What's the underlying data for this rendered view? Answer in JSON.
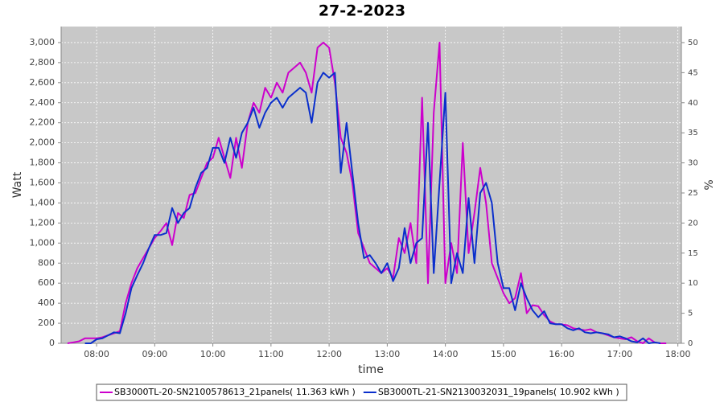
{
  "chart_data": {
    "type": "line",
    "title": "27-2-2023",
    "xlabel": "time",
    "ylabel": "Watt",
    "y2label": "%",
    "x": [
      7.5,
      7.6,
      7.7,
      7.8,
      7.9,
      8.0,
      8.1,
      8.2,
      8.3,
      8.4,
      8.5,
      8.6,
      8.7,
      8.8,
      8.9,
      9.0,
      9.1,
      9.2,
      9.3,
      9.4,
      9.5,
      9.6,
      9.7,
      9.8,
      9.9,
      10.0,
      10.1,
      10.2,
      10.3,
      10.4,
      10.5,
      10.6,
      10.7,
      10.8,
      10.9,
      11.0,
      11.1,
      11.2,
      11.3,
      11.4,
      11.5,
      11.6,
      11.7,
      11.8,
      11.9,
      12.0,
      12.1,
      12.2,
      12.3,
      12.4,
      12.5,
      12.6,
      12.7,
      12.8,
      12.9,
      13.0,
      13.1,
      13.2,
      13.3,
      13.4,
      13.5,
      13.6,
      13.7,
      13.8,
      13.9,
      14.0,
      14.1,
      14.2,
      14.3,
      14.4,
      14.5,
      14.6,
      14.7,
      14.8,
      14.9,
      15.0,
      15.1,
      15.2,
      15.3,
      15.4,
      15.5,
      15.6,
      15.7,
      15.8,
      15.9,
      16.0,
      16.1,
      16.2,
      16.3,
      16.4,
      16.5,
      16.6,
      16.7,
      16.8,
      16.9,
      17.0,
      17.1,
      17.2,
      17.3,
      17.4,
      17.5,
      17.6,
      17.7,
      17.8
    ],
    "series": [
      {
        "name": "SB3000TL-20-SN2100578613_21panels( 11.363 kWh )",
        "color": "#cc00cc",
        "values": [
          0,
          10,
          20,
          50,
          50,
          50,
          60,
          80,
          100,
          120,
          400,
          600,
          750,
          850,
          950,
          1050,
          1120,
          1200,
          980,
          1300,
          1250,
          1480,
          1500,
          1650,
          1800,
          1850,
          2050,
          1850,
          1650,
          2050,
          1750,
          2200,
          2400,
          2300,
          2550,
          2450,
          2600,
          2500,
          2700,
          2750,
          2800,
          2700,
          2500,
          2950,
          3000,
          2950,
          2600,
          2050,
          1900,
          1600,
          1100,
          950,
          800,
          750,
          700,
          750,
          650,
          1050,
          900,
          1200,
          800,
          2450,
          600,
          2300,
          3000,
          600,
          1000,
          700,
          2000,
          900,
          1300,
          1750,
          1400,
          800,
          650,
          500,
          400,
          450,
          700,
          300,
          380,
          370,
          280,
          220,
          190,
          190,
          180,
          150,
          140,
          130,
          140,
          110,
          100,
          80,
          60,
          50,
          40,
          60,
          20,
          0,
          50,
          10,
          0,
          0
        ]
      },
      {
        "name": "SB3000TL-21-SN2130032031_19panels( 10.902 kWh )",
        "color": "#0a2fcc",
        "values": [
          null,
          null,
          null,
          0,
          0,
          40,
          50,
          80,
          110,
          100,
          300,
          550,
          680,
          800,
          950,
          1080,
          1080,
          1100,
          1350,
          1200,
          1300,
          1350,
          1550,
          1700,
          1750,
          1950,
          1950,
          1800,
          2050,
          1850,
          2100,
          2200,
          2350,
          2150,
          2300,
          2400,
          2450,
          2350,
          2450,
          2500,
          2550,
          2500,
          2200,
          2600,
          2700,
          2650,
          2700,
          1700,
          2200,
          1700,
          1200,
          850,
          880,
          800,
          700,
          800,
          620,
          750,
          1150,
          800,
          1000,
          1050,
          2200,
          700,
          1600,
          2500,
          600,
          900,
          700,
          1450,
          800,
          1500,
          1600,
          1400,
          800,
          550,
          550,
          330,
          600,
          450,
          330,
          260,
          320,
          200,
          190,
          190,
          150,
          130,
          150,
          110,
          100,
          110,
          100,
          90,
          60,
          70,
          50,
          20,
          10,
          50,
          0,
          10,
          0,
          null
        ]
      }
    ],
    "xlim": [
      7.39,
      18.06
    ],
    "xticks": [
      {
        "value": 8,
        "label": "08:00"
      },
      {
        "value": 9,
        "label": "09:00"
      },
      {
        "value": 10,
        "label": "10:00"
      },
      {
        "value": 11,
        "label": "11:00"
      },
      {
        "value": 12,
        "label": "12:00"
      },
      {
        "value": 13,
        "label": "13:00"
      },
      {
        "value": 14,
        "label": "14:00"
      },
      {
        "value": 15,
        "label": "15:00"
      },
      {
        "value": 16,
        "label": "16:00"
      },
      {
        "value": 17,
        "label": "17:00"
      },
      {
        "value": 18,
        "label": "18:00"
      }
    ],
    "ylim": [
      0,
      3160
    ],
    "yticks": [
      0,
      200,
      400,
      600,
      800,
      {
        "value": 1000,
        "label": "1,000"
      },
      {
        "value": 1200,
        "label": "1,200"
      },
      {
        "value": 1400,
        "label": "1,400"
      },
      {
        "value": 1600,
        "label": "1,600"
      },
      {
        "value": 1800,
        "label": "1,800"
      },
      {
        "value": 2000,
        "label": "2,000"
      },
      {
        "value": 2200,
        "label": "2,200"
      },
      {
        "value": 2400,
        "label": "2,400"
      },
      {
        "value": 2600,
        "label": "2,600"
      },
      {
        "value": 2800,
        "label": "2,800"
      },
      {
        "value": 3000,
        "label": "3,000"
      }
    ],
    "y2lim": [
      0,
      52.67
    ],
    "y2ticks": [
      0,
      5,
      10,
      15,
      20,
      25,
      30,
      35,
      40,
      45,
      50
    ],
    "grid": true,
    "legend": "bottom"
  }
}
